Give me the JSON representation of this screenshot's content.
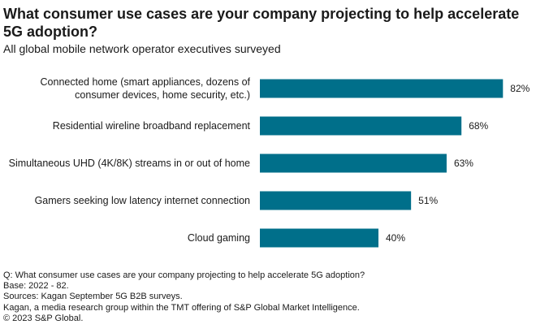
{
  "header": {
    "title": "What consumer use cases are your company projecting to help accelerate 5G adoption?",
    "subtitle": "All global mobile network operator executives surveyed"
  },
  "chart_data": {
    "type": "bar",
    "orientation": "horizontal",
    "categories": [
      [
        "Connected home (smart appliances, dozens of",
        "consumer devices, home security, etc.)"
      ],
      [
        "Residential wireline broadband replacement"
      ],
      [
        "Simultaneous UHD (4K/8K) streams in or out of home"
      ],
      [
        "Gamers seeking low latency internet connection"
      ],
      [
        "Cloud gaming"
      ]
    ],
    "values": [
      82,
      68,
      63,
      51,
      40
    ],
    "value_labels": [
      "82%",
      "68%",
      "63%",
      "51%",
      "40%"
    ],
    "xlim": [
      0,
      100
    ],
    "bar_color": "#006f8a",
    "grid": false,
    "legend": "none"
  },
  "footer": {
    "lines": [
      "Q: What consumer use cases are your company projecting to help accelerate 5G adoption?",
      "Base: 2022 - 82.",
      "Sources: Kagan September 5G B2B surveys.",
      "Kagan, a media research group within the TMT offering of S&P Global Market Intelligence.",
      "© 2023 S&P Global."
    ]
  }
}
